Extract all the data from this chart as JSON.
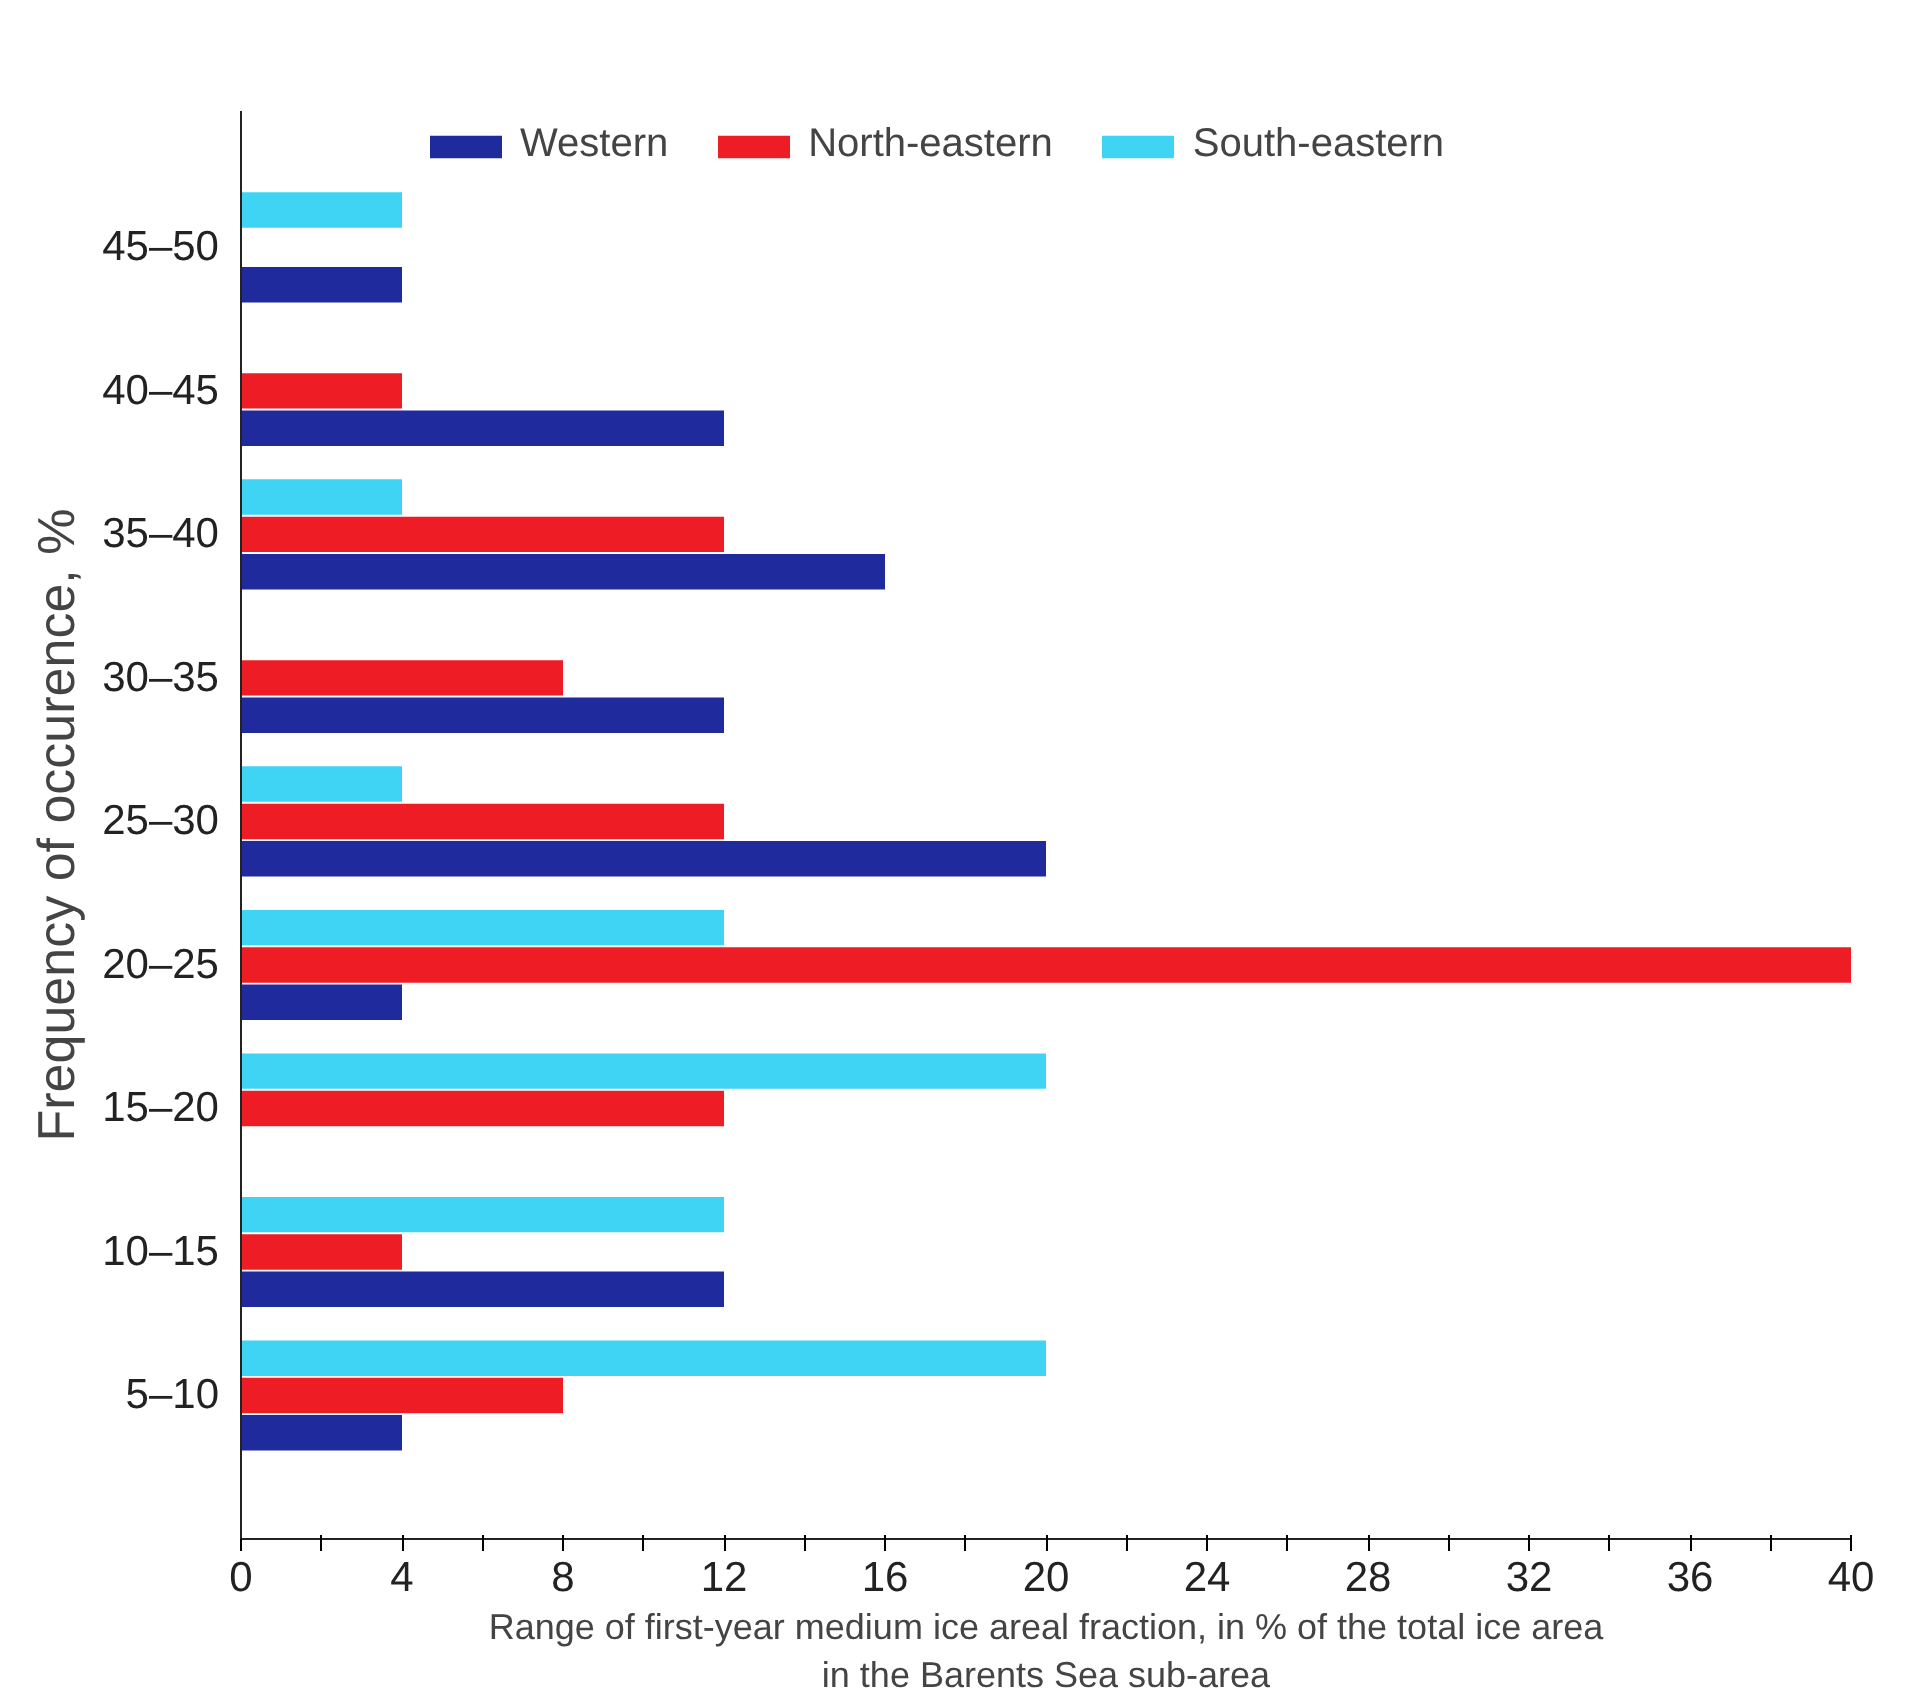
{
  "chart_data": {
    "type": "bar",
    "orientation": "horizontal",
    "categories": [
      "45–50",
      "40–45",
      "35–40",
      "30–35",
      "25–30",
      "20–25",
      "15–20",
      "10–15",
      "5–10"
    ],
    "series": [
      {
        "name": "Western",
        "color": "#1f2a9c",
        "values": [
          4,
          12,
          16,
          12,
          20,
          4,
          null,
          12,
          4
        ]
      },
      {
        "name": "North-eastern",
        "color": "#ee1c25",
        "values": [
          null,
          4,
          12,
          8,
          12,
          40,
          12,
          4,
          8
        ]
      },
      {
        "name": "South-eastern",
        "color": "#3fd4f4",
        "values": [
          4,
          null,
          4,
          null,
          4,
          12,
          20,
          12,
          20
        ]
      }
    ],
    "xlim": [
      0,
      40
    ],
    "xticks": [
      0,
      {
        "value": 2,
        "label": null
      },
      4,
      {
        "value": 6,
        "label": null
      },
      8,
      {
        "value": 10,
        "label": null
      },
      12,
      {
        "value": 14,
        "label": null
      },
      16,
      {
        "value": 18,
        "label": null
      },
      20,
      {
        "value": 22,
        "label": null
      },
      24,
      {
        "value": 26,
        "label": null
      },
      28,
      {
        "value": 30,
        "label": null
      },
      32,
      {
        "value": 34,
        "label": null
      },
      36,
      {
        "value": 38,
        "label": null
      },
      40
    ],
    "xlabel": "Range of first-year medium ice areal fraction, in % of the total ice area\nin the Barents Sea sub-area",
    "ylabel": "Frequency of occurence, %",
    "legend": "top",
    "grid": false
  }
}
